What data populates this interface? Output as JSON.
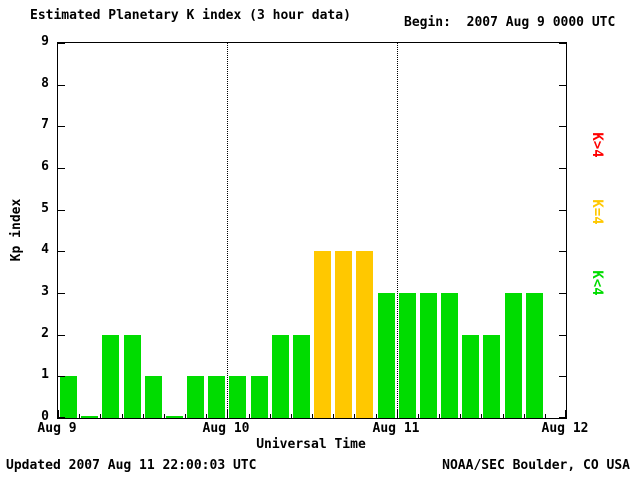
{
  "chart_data": {
    "type": "bar",
    "title": "Estimated Planetary K index (3 hour data)",
    "begin_label": "Begin:  2007 Aug 9 0000 UTC",
    "xlabel": "Universal Time",
    "ylabel": "Kp index",
    "ylim": [
      0,
      9
    ],
    "y_ticks": [
      0,
      1,
      2,
      3,
      4,
      5,
      6,
      7,
      8,
      9
    ],
    "x_tick_labels": [
      "Aug 9",
      "Aug 10",
      "Aug 11",
      "Aug 12"
    ],
    "hours_per_bar": 3,
    "bars_per_day": 8,
    "values": [
      1,
      0,
      2,
      2,
      1,
      0,
      1,
      1,
      1,
      1,
      2,
      2,
      4,
      4,
      4,
      3,
      3,
      3,
      3,
      2,
      2,
      3,
      3
    ],
    "color_rules": {
      "k_lt_4": "#00DC00",
      "k_eq_4": "#FFC800",
      "k_gt_4": "#FF0000"
    },
    "legend": [
      {
        "label": "K>4",
        "color": "#FF0000"
      },
      {
        "label": "K=4",
        "color": "#FFC800"
      },
      {
        "label": "K<4",
        "color": "#00DC00"
      }
    ],
    "grid": "none",
    "day_boundary_lines": "dotted",
    "updated": "Updated 2007 Aug 11 22:00:03 UTC",
    "credit": "NOAA/SEC Boulder, CO USA"
  }
}
